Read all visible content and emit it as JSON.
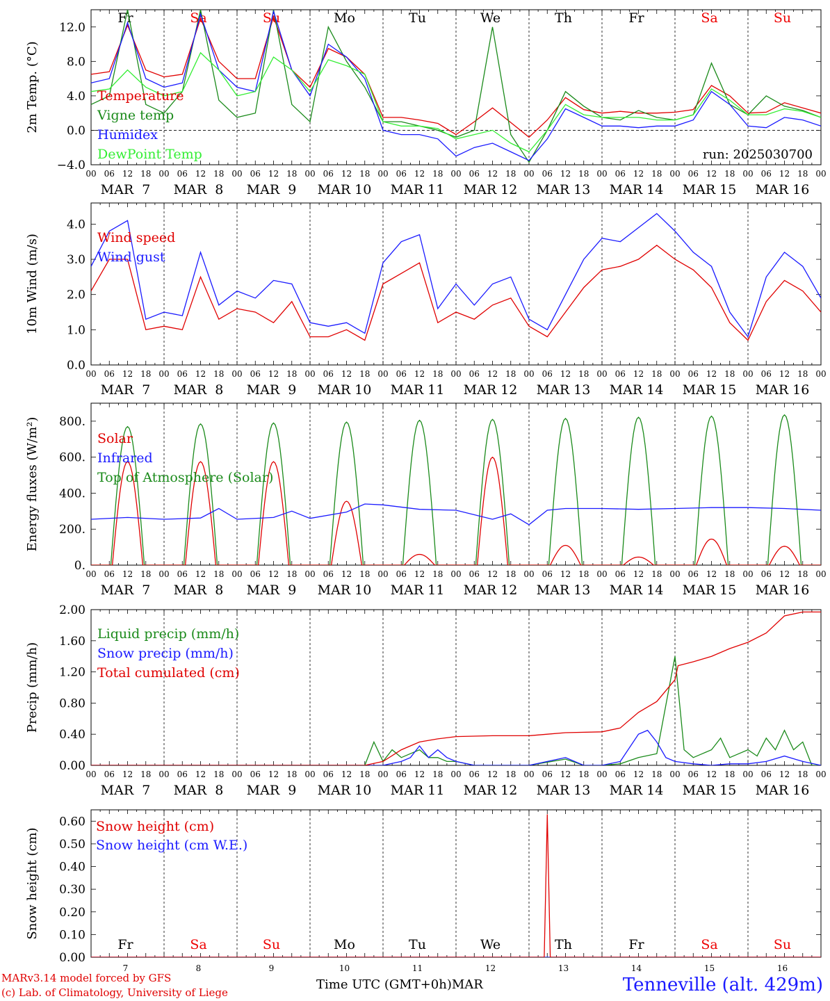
{
  "run_label": "run: 2025030700",
  "footer": {
    "model": "MARv3.14 model forced by GFS",
    "lab": "(c) Lab. of Climatology, University of Liege",
    "time_axis": "Time UTC (GMT+0h)",
    "month": "MAR",
    "station": "Tenneville (alt. 429m)"
  },
  "days": [
    {
      "dow": "Fr",
      "date": "MAR  7",
      "num": "7",
      "weekend": false
    },
    {
      "dow": "Sa",
      "date": "MAR  8",
      "num": "8",
      "weekend": true
    },
    {
      "dow": "Su",
      "date": "MAR  9",
      "num": "9",
      "weekend": true
    },
    {
      "dow": "Mo",
      "date": "MAR 10",
      "num": "10",
      "weekend": false
    },
    {
      "dow": "Tu",
      "date": "MAR 11",
      "num": "11",
      "weekend": false
    },
    {
      "dow": "We",
      "date": "MAR 12",
      "num": "12",
      "weekend": false
    },
    {
      "dow": "Th",
      "date": "MAR 13",
      "num": "13",
      "weekend": false
    },
    {
      "dow": "Fr",
      "date": "MAR 14",
      "num": "14",
      "weekend": false
    },
    {
      "dow": "Sa",
      "date": "MAR 15",
      "num": "15",
      "weekend": true
    },
    {
      "dow": "Su",
      "date": "MAR 16",
      "num": "16",
      "weekend": true
    }
  ],
  "hour_ticks": [
    "00",
    "06",
    "12",
    "18"
  ],
  "colors": {
    "red": "#e00000",
    "blue": "#1a1aff",
    "darkgreen": "#1a8a1a",
    "lightgreen": "#33ee33",
    "weekend": "#ee0000",
    "text": "#000000"
  },
  "chart_data": [
    {
      "type": "line",
      "ylabel": "2m Temp. (°C)",
      "ylim": [
        -4,
        14
      ],
      "yticks": [
        -4,
        0,
        4,
        8,
        12
      ],
      "ytick_labels": [
        "−4.0",
        "0.0",
        "4.0",
        "8.0",
        "12.0"
      ],
      "zero_line": true,
      "x_unit": "hours since MAR 7 00 UTC",
      "series": [
        {
          "name": "Temperature",
          "color": "#e00000",
          "x": [
            0,
            6,
            12,
            18,
            24,
            30,
            36,
            42,
            48,
            54,
            60,
            66,
            72,
            78,
            84,
            90,
            96,
            102,
            108,
            114,
            120,
            126,
            132,
            138,
            144,
            150,
            156,
            162,
            168,
            174,
            180,
            186,
            192,
            198,
            204,
            210,
            216,
            222,
            228,
            234,
            240
          ],
          "y": [
            6.5,
            6.8,
            12.2,
            7,
            6.2,
            6.5,
            13,
            8,
            6,
            6,
            13.2,
            7,
            5,
            9.5,
            8.5,
            6.5,
            1.5,
            1.5,
            1.2,
            0.8,
            -0.5,
            1,
            2.6,
            0.9,
            -0.8,
            1.2,
            3.8,
            2.4,
            2,
            2.2,
            2,
            2,
            2.1,
            2.4,
            5.2,
            4,
            2,
            2.1,
            3.2,
            2.6,
            2
          ]
        },
        {
          "name": "Vigne temp",
          "color": "#1a8a1a",
          "x": [
            0,
            6,
            12,
            18,
            24,
            30,
            36,
            42,
            48,
            54,
            60,
            66,
            72,
            78,
            84,
            90,
            96,
            102,
            108,
            114,
            120,
            126,
            132,
            138,
            144,
            150,
            156,
            162,
            168,
            174,
            180,
            186,
            192,
            198,
            204,
            210,
            216,
            222,
            228,
            234,
            240
          ],
          "y": [
            3,
            4,
            14,
            3,
            2,
            4.5,
            14,
            3.5,
            1.5,
            2,
            14,
            3,
            1,
            12,
            8,
            5,
            1,
            1,
            0.5,
            0,
            -0.8,
            0,
            12,
            -0.5,
            -3.7,
            0,
            4.5,
            2.8,
            1.5,
            1.2,
            2.3,
            1.5,
            1.2,
            1.8,
            7.8,
            3,
            1.8,
            4,
            2.8,
            2.3,
            1.5
          ]
        },
        {
          "name": "Humidex",
          "color": "#1a1aff",
          "x": [
            0,
            6,
            12,
            18,
            24,
            30,
            36,
            42,
            48,
            54,
            60,
            66,
            72,
            78,
            84,
            90,
            96,
            102,
            108,
            114,
            120,
            126,
            132,
            138,
            144,
            150,
            156,
            162,
            168,
            174,
            180,
            186,
            192,
            198,
            204,
            210,
            216,
            222,
            228,
            234,
            240
          ],
          "y": [
            5.5,
            6,
            12.5,
            6,
            5,
            5.5,
            13.5,
            7,
            5,
            4.5,
            13.8,
            7,
            4,
            10,
            8.5,
            6,
            0,
            -0.5,
            -0.5,
            -1,
            -3,
            -2,
            -1.5,
            -2.5,
            -3.5,
            -1,
            2.5,
            1.5,
            0.5,
            0.5,
            0.3,
            0.5,
            0.5,
            1.2,
            4.5,
            3,
            0.5,
            0.3,
            1.5,
            1.2,
            0.5
          ]
        },
        {
          "name": "DewPoint Temp",
          "color": "#33ee33",
          "x": [
            0,
            6,
            12,
            18,
            24,
            30,
            36,
            42,
            48,
            54,
            60,
            66,
            72,
            78,
            84,
            90,
            96,
            102,
            108,
            114,
            120,
            126,
            132,
            138,
            144,
            150,
            156,
            162,
            168,
            174,
            180,
            186,
            192,
            198,
            204,
            210,
            216,
            222,
            228,
            234,
            240
          ],
          "y": [
            4.5,
            4.8,
            7,
            5,
            4,
            4.5,
            9,
            7,
            4,
            4.5,
            8.5,
            7,
            4.5,
            8.2,
            7.5,
            6.5,
            1,
            0.5,
            0.5,
            0.2,
            -1,
            -0.5,
            0,
            -1.5,
            -2.5,
            0,
            3,
            1.8,
            1.5,
            1.5,
            1.5,
            1.2,
            1.2,
            1.8,
            4.8,
            3.5,
            1.8,
            1.8,
            2.5,
            2.2,
            1.5
          ]
        }
      ]
    },
    {
      "type": "line",
      "ylabel": "10m Wind (m/s)",
      "ylim": [
        0,
        4.6
      ],
      "yticks": [
        0,
        1,
        2,
        3,
        4
      ],
      "ytick_labels": [
        "0.0",
        "1.0",
        "2.0",
        "3.0",
        "4.0"
      ],
      "zero_line": false,
      "x_unit": "hours since MAR 7 00 UTC",
      "series": [
        {
          "name": "Wind speed",
          "color": "#e00000",
          "x": [
            0,
            6,
            12,
            18,
            24,
            30,
            36,
            42,
            48,
            54,
            60,
            66,
            72,
            78,
            84,
            90,
            96,
            102,
            108,
            114,
            120,
            126,
            132,
            138,
            144,
            150,
            156,
            162,
            168,
            174,
            180,
            186,
            192,
            198,
            204,
            210,
            216,
            222,
            228,
            234,
            240
          ],
          "y": [
            2.1,
            3,
            3,
            1,
            1.1,
            1,
            2.5,
            1.3,
            1.6,
            1.5,
            1.2,
            1.8,
            0.8,
            0.8,
            1,
            0.7,
            2.3,
            2.6,
            2.9,
            1.2,
            1.5,
            1.3,
            1.7,
            1.9,
            1.1,
            0.8,
            1.5,
            2.2,
            2.7,
            2.8,
            3,
            3.4,
            3,
            2.7,
            2.2,
            1.2,
            0.7,
            1.8,
            2.4,
            2.1,
            1.5
          ]
        },
        {
          "name": "Wind gust",
          "color": "#1a1aff",
          "x": [
            0,
            6,
            12,
            18,
            24,
            30,
            36,
            42,
            48,
            54,
            60,
            66,
            72,
            78,
            84,
            90,
            96,
            102,
            108,
            114,
            120,
            126,
            132,
            138,
            144,
            150,
            156,
            162,
            168,
            174,
            180,
            186,
            192,
            198,
            204,
            210,
            216,
            222,
            228,
            234,
            240
          ],
          "y": [
            2.8,
            3.8,
            4.1,
            1.3,
            1.5,
            1.4,
            3.2,
            1.7,
            2.1,
            1.9,
            2.4,
            2.3,
            1.2,
            1.1,
            1.2,
            0.9,
            2.9,
            3.5,
            3.7,
            1.6,
            2.3,
            1.7,
            2.3,
            2.5,
            1.3,
            1,
            2,
            3,
            3.6,
            3.5,
            3.9,
            4.3,
            3.8,
            3.2,
            2.8,
            1.5,
            0.8,
            2.5,
            3.2,
            2.8,
            1.9
          ]
        }
      ]
    },
    {
      "type": "line",
      "ylabel": "Energy fluxes (W/m²)",
      "ylim": [
        0,
        900
      ],
      "yticks": [
        0,
        200,
        400,
        600,
        800
      ],
      "ytick_labels": [
        "0.",
        "200.",
        "400.",
        "600.",
        "800."
      ],
      "zero_line": false,
      "x_unit": "hours since MAR 7 00 UTC",
      "diurnal_series": [
        {
          "name": "Top of Atmosphere (Solar)",
          "color": "#1a8a1a",
          "start_hour": 6.5,
          "end_hour": 17.5,
          "peaks": [
            770,
            785,
            790,
            795,
            805,
            810,
            815,
            822,
            828,
            835
          ]
        },
        {
          "name": "Solar",
          "color": "#e00000",
          "start_hour": 7,
          "end_hour": 17,
          "peaks": [
            575,
            575,
            575,
            355,
            60,
            600,
            110,
            45,
            145,
            105
          ]
        }
      ],
      "series": [
        {
          "name": "Infrared",
          "color": "#1a1aff",
          "x": [
            0,
            12,
            24,
            36,
            42,
            48,
            60,
            66,
            72,
            84,
            90,
            96,
            108,
            120,
            132,
            138,
            144,
            150,
            156,
            168,
            180,
            192,
            204,
            216,
            228,
            240
          ],
          "y": [
            255,
            265,
            255,
            262,
            315,
            255,
            265,
            300,
            260,
            295,
            340,
            335,
            310,
            305,
            255,
            285,
            225,
            305,
            315,
            315,
            310,
            315,
            320,
            320,
            315,
            305
          ]
        }
      ]
    },
    {
      "type": "line",
      "ylabel": "Precip (mm/h)",
      "ylim": [
        0,
        2
      ],
      "yticks": [
        0,
        0.4,
        0.8,
        1.2,
        1.6,
        2.0
      ],
      "ytick_labels": [
        "0.00",
        "0.40",
        "0.80",
        "1.20",
        "1.60",
        "2.00"
      ],
      "zero_line": false,
      "x_unit": "hours since MAR 7 00 UTC",
      "series": [
        {
          "name": "Liquid precip (mm/h)",
          "color": "#1a8a1a",
          "x": [
            0,
            90,
            93,
            96,
            99,
            102,
            105,
            108,
            111,
            114,
            117,
            120,
            126,
            132,
            144,
            156,
            162,
            168,
            174,
            180,
            186,
            192,
            195,
            198,
            201,
            204,
            207,
            210,
            213,
            216,
            219,
            222,
            225,
            228,
            231,
            234,
            237,
            240
          ],
          "y": [
            0,
            0,
            0.3,
            0.05,
            0.2,
            0.1,
            0.15,
            0.2,
            0.1,
            0.1,
            0.05,
            0.05,
            0,
            0,
            0,
            0.08,
            0,
            0,
            0.02,
            0.1,
            0.15,
            1.4,
            0.2,
            0.1,
            0.15,
            0.2,
            0.35,
            0.1,
            0.15,
            0.2,
            0.12,
            0.35,
            0.2,
            0.45,
            0.2,
            0.3,
            0,
            0
          ]
        },
        {
          "name": "Snow precip (mm/h)",
          "color": "#1a1aff",
          "x": [
            0,
            96,
            102,
            105,
            108,
            111,
            114,
            117,
            120,
            126,
            132,
            144,
            156,
            162,
            168,
            174,
            180,
            183,
            186,
            189,
            192,
            198,
            204,
            210,
            216,
            222,
            228,
            234,
            240
          ],
          "y": [
            0,
            0,
            0.05,
            0.1,
            0.25,
            0.1,
            0.2,
            0.1,
            0.05,
            0,
            0,
            0,
            0.1,
            0,
            0,
            0.05,
            0.4,
            0.45,
            0.3,
            0.1,
            0.05,
            0.02,
            0,
            0.02,
            0.02,
            0.05,
            0.12,
            0.05,
            0
          ]
        },
        {
          "name": "Total cumulated (cm)",
          "color": "#e00000",
          "x": [
            0,
            90,
            96,
            102,
            108,
            114,
            120,
            132,
            144,
            150,
            156,
            168,
            174,
            180,
            186,
            192,
            193,
            198,
            204,
            210,
            216,
            222,
            228,
            234,
            240
          ],
          "y": [
            0,
            0,
            0.05,
            0.2,
            0.3,
            0.34,
            0.37,
            0.38,
            0.38,
            0.4,
            0.42,
            0.43,
            0.48,
            0.68,
            0.82,
            1.1,
            1.28,
            1.33,
            1.4,
            1.5,
            1.58,
            1.7,
            1.92,
            1.97,
            1.97
          ]
        }
      ]
    },
    {
      "type": "line",
      "ylabel": "Snow height (cm)",
      "ylim": [
        0,
        0.65
      ],
      "yticks": [
        0,
        0.1,
        0.2,
        0.3,
        0.4,
        0.5,
        0.6
      ],
      "ytick_labels": [
        "0.00",
        "0.10",
        "0.20",
        "0.30",
        "0.40",
        "0.50",
        "0.60"
      ],
      "zero_line": false,
      "x_unit": "hours since MAR 7 00 UTC",
      "series": [
        {
          "name": "Snow height (cm W.E.)",
          "color": "#1a1aff",
          "x": [
            0,
            240
          ],
          "y": [
            0,
            0
          ]
        },
        {
          "name": "Snow height (cm)",
          "color": "#e00000",
          "x": [
            0,
            149,
            150,
            151,
            240
          ],
          "y": [
            0,
            0,
            0.63,
            0,
            0
          ]
        }
      ]
    }
  ]
}
